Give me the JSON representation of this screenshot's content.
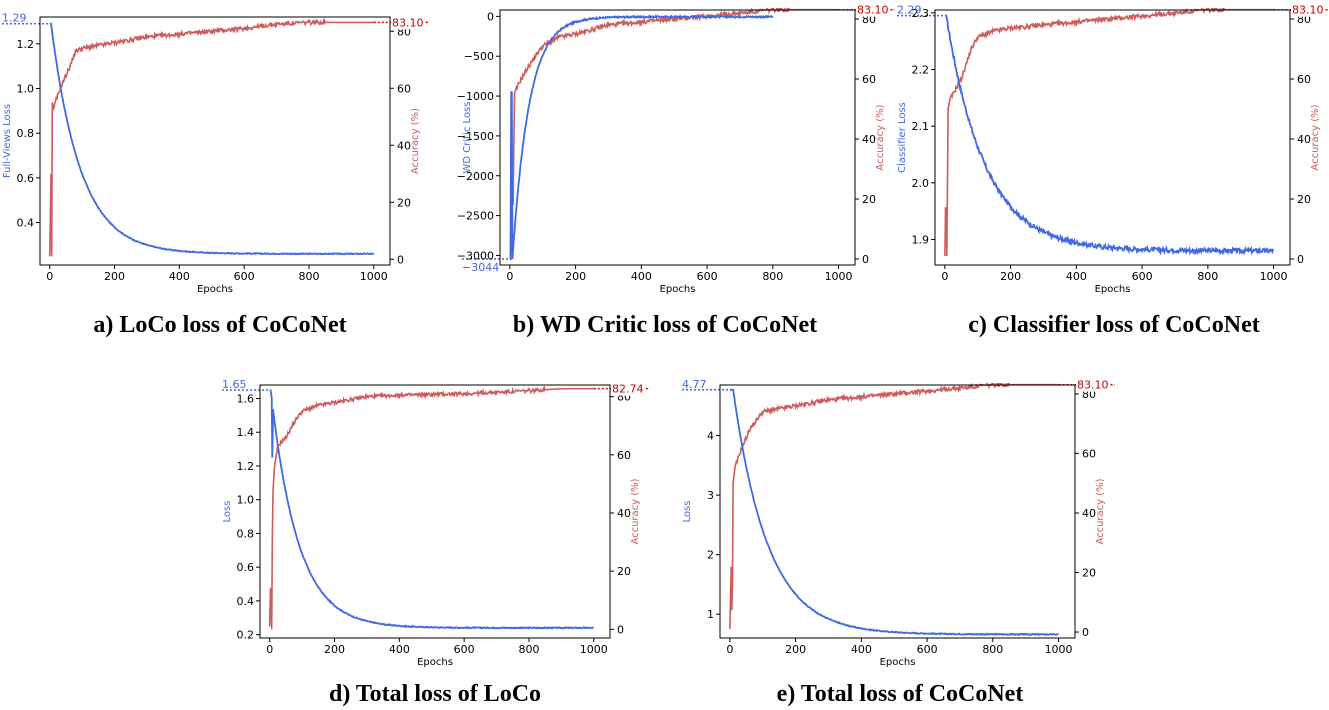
{
  "colors": {
    "loss": "#4169e1",
    "acc": "#cd5c5c",
    "acc_label": "#cc0000",
    "axis": "#000000"
  },
  "chart_data": [
    {
      "id": "a",
      "type": "line",
      "caption": "a) LoCo loss of CoCoNet",
      "xlabel": "Epochs",
      "ylabel": "Full-Views Loss",
      "y2label": "Accuracy (%)",
      "xlim": [
        -30,
        1050
      ],
      "ylim": [
        0.21,
        1.32
      ],
      "y2lim": [
        -2,
        85
      ],
      "xticks": [
        0,
        200,
        400,
        600,
        800,
        1000
      ],
      "yticks": [
        0.4,
        0.6,
        0.8,
        1.0,
        1.2
      ],
      "ytick_labels": [
        "0.4",
        "0.6",
        "0.8",
        "1.0",
        "1.2"
      ],
      "y2ticks": [
        0,
        20,
        40,
        60,
        80
      ],
      "loss": {
        "start": 1.29,
        "end": 0.26,
        "rate": 0.011,
        "plateau_until": 4,
        "x_max": 1000,
        "noise": 0.002
      },
      "accuracy": {
        "spikes": [
          [
            0,
            1
          ],
          [
            4,
            30
          ],
          [
            6,
            1
          ],
          [
            8,
            55
          ],
          [
            12,
            53
          ],
          [
            20,
            56
          ],
          [
            40,
            62
          ],
          [
            60,
            67
          ],
          [
            80,
            73
          ],
          [
            100,
            74
          ],
          [
            150,
            75
          ],
          [
            200,
            76
          ],
          [
            300,
            78
          ],
          [
            400,
            79
          ],
          [
            500,
            80
          ],
          [
            600,
            81
          ],
          [
            700,
            82.5
          ],
          [
            800,
            83.1
          ],
          [
            1000,
            83.1
          ]
        ],
        "x_max": 1000,
        "noise": 0.7
      },
      "loss_end_label": "1.29",
      "acc_end_label": "83.10"
    },
    {
      "id": "b",
      "type": "line",
      "caption": "b) WD Critic loss of CoCoNet",
      "xlabel": "Epochs",
      "ylabel": "WD Critic Loss",
      "y2label": "Accuracy (%)",
      "xlim": [
        -30,
        1050
      ],
      "ylim": [
        -3120,
        80
      ],
      "y2lim": [
        -2,
        83
      ],
      "xticks": [
        0,
        200,
        400,
        600,
        800,
        1000
      ],
      "yticks": [
        -3000,
        -2500,
        -2000,
        -1500,
        -1000,
        -500,
        0
      ],
      "ytick_labels": [
        "−3000",
        "−2500",
        "−2000",
        "−1500",
        "−1000",
        "−500",
        "0"
      ],
      "y2ticks": [
        0,
        20,
        40,
        60,
        80
      ],
      "loss_mode": "critic",
      "loss": {
        "start": -3044,
        "end": -5,
        "rate": 0.02,
        "plateau_until": 8,
        "x_max": 800,
        "noise": 10,
        "spike": [
          5,
          -950
        ]
      },
      "accuracy": {
        "spikes": [
          [
            0,
            1
          ],
          [
            4,
            2
          ],
          [
            6,
            25
          ],
          [
            10,
            18
          ],
          [
            14,
            55
          ],
          [
            25,
            58
          ],
          [
            50,
            63
          ],
          [
            80,
            68
          ],
          [
            100,
            71
          ],
          [
            150,
            74
          ],
          [
            200,
            75
          ],
          [
            300,
            78
          ],
          [
            400,
            79
          ],
          [
            500,
            80
          ],
          [
            600,
            81
          ],
          [
            700,
            82
          ],
          [
            800,
            83.1
          ],
          [
            1000,
            83.1
          ]
        ],
        "x_max": 1000,
        "noise": 0.7
      },
      "loss_end_label": "−3044",
      "acc_end_label": "83.10"
    },
    {
      "id": "c",
      "type": "line",
      "caption": "c) Classifier loss of CoCoNet",
      "xlabel": "Epochs",
      "ylabel": "Classifier Loss",
      "y2label": "Accuracy (%)",
      "xlim": [
        -30,
        1050
      ],
      "ylim": [
        1.855,
        2.305
      ],
      "y2lim": [
        -2,
        83
      ],
      "xticks": [
        0,
        200,
        400,
        600,
        800,
        1000
      ],
      "yticks": [
        1.9,
        2.0,
        2.1,
        2.2,
        2.3
      ],
      "ytick_labels": [
        "1.9",
        "2.0",
        "2.1",
        "2.2",
        "2.3"
      ],
      "y2ticks": [
        0,
        20,
        40,
        60,
        80
      ],
      "loss": {
        "start": 2.295,
        "end": 1.88,
        "rate": 0.0085,
        "plateau_until": 4,
        "x_max": 1000,
        "noise": 0.004
      },
      "accuracy": {
        "spikes": [
          [
            0,
            1
          ],
          [
            3,
            25
          ],
          [
            6,
            1
          ],
          [
            10,
            50
          ],
          [
            15,
            53
          ],
          [
            25,
            55
          ],
          [
            50,
            60
          ],
          [
            80,
            70
          ],
          [
            100,
            74
          ],
          [
            150,
            76
          ],
          [
            200,
            77
          ],
          [
            300,
            78
          ],
          [
            400,
            79
          ],
          [
            500,
            80
          ],
          [
            600,
            81
          ],
          [
            700,
            82
          ],
          [
            800,
            83.1
          ],
          [
            1000,
            83.1
          ]
        ],
        "x_max": 1000,
        "noise": 0.7
      },
      "loss_end_label": "2.29",
      "acc_end_label": "83.10"
    },
    {
      "id": "d",
      "type": "line",
      "caption": "d) Total loss of LoCo",
      "xlabel": "Epochs",
      "ylabel": "Loss",
      "y2label": "Accuracy (%)",
      "xlim": [
        -30,
        1050
      ],
      "ylim": [
        0.18,
        1.68
      ],
      "y2lim": [
        -3,
        84
      ],
      "xticks": [
        0,
        200,
        400,
        600,
        800,
        1000
      ],
      "yticks": [
        0.2,
        0.4,
        0.6,
        0.8,
        1.0,
        1.2,
        1.4,
        1.6
      ],
      "ytick_labels": [
        "0.2",
        "0.4",
        "0.6",
        "0.8",
        "1.0",
        "1.2",
        "1.4",
        "1.6"
      ],
      "y2ticks": [
        0,
        20,
        40,
        60,
        80
      ],
      "loss": {
        "start": 1.65,
        "end": 0.24,
        "rate": 0.012,
        "plateau_until": 3,
        "x_max": 1000,
        "noise": 0.003,
        "spike": [
          8,
          1.25
        ]
      },
      "accuracy": {
        "spikes": [
          [
            0,
            1
          ],
          [
            3,
            20
          ],
          [
            6,
            0
          ],
          [
            9,
            45
          ],
          [
            14,
            55
          ],
          [
            25,
            63
          ],
          [
            50,
            66
          ],
          [
            80,
            72
          ],
          [
            100,
            75
          ],
          [
            150,
            77
          ],
          [
            200,
            78
          ],
          [
            300,
            80
          ],
          [
            400,
            80.5
          ],
          [
            600,
            81
          ],
          [
            800,
            82
          ],
          [
            900,
            82.74
          ],
          [
            1000,
            82.74
          ]
        ],
        "x_max": 1000,
        "noise": 0.6
      },
      "loss_end_label": "1.65",
      "acc_end_label": "82.74"
    },
    {
      "id": "e",
      "type": "line",
      "caption": "e) Total loss of CoCoNet",
      "xlabel": "Epochs",
      "ylabel": "Loss",
      "y2label": "Accuracy (%)",
      "xlim": [
        -30,
        1050
      ],
      "ylim": [
        0.6,
        4.85
      ],
      "y2lim": [
        -2,
        83
      ],
      "xticks": [
        0,
        200,
        400,
        600,
        800,
        1000
      ],
      "yticks": [
        1,
        2,
        3,
        4
      ],
      "ytick_labels": [
        "1",
        "2",
        "3",
        "4"
      ],
      "y2ticks": [
        0,
        20,
        40,
        60,
        80
      ],
      "loss": {
        "start": 4.77,
        "end": 0.66,
        "rate": 0.0095,
        "plateau_until": 10,
        "x_max": 1000,
        "noise": 0.008
      },
      "accuracy": {
        "spikes": [
          [
            0,
            1
          ],
          [
            4,
            22
          ],
          [
            7,
            0
          ],
          [
            10,
            50
          ],
          [
            15,
            55
          ],
          [
            30,
            60
          ],
          [
            60,
            68
          ],
          [
            100,
            74
          ],
          [
            150,
            75
          ],
          [
            200,
            76
          ],
          [
            300,
            78
          ],
          [
            400,
            79
          ],
          [
            500,
            80
          ],
          [
            600,
            81
          ],
          [
            700,
            82
          ],
          [
            800,
            83.1
          ],
          [
            1000,
            83.1
          ]
        ],
        "x_max": 1000,
        "noise": 0.7
      },
      "loss_end_label": "4.77",
      "acc_end_label": "83.10"
    }
  ]
}
